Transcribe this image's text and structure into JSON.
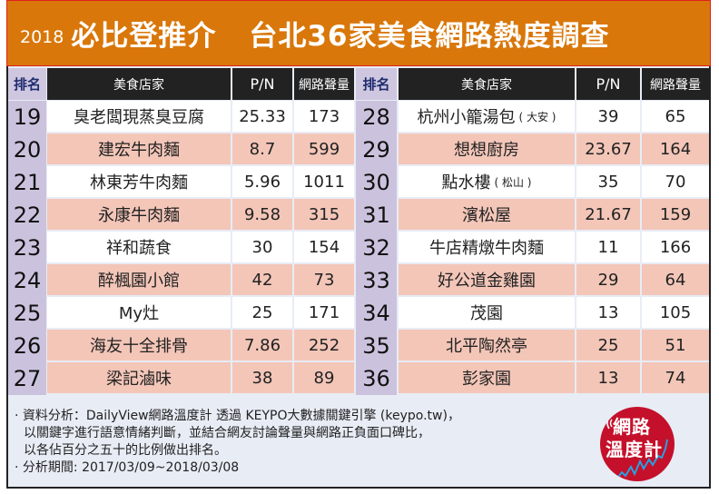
{
  "title": {
    "year": "2018",
    "part1": "必比登推介",
    "part2": "台北36家美食網路熱度調查"
  },
  "headers": {
    "rank": "排名",
    "name": "美食店家",
    "pn": "P/N",
    "volume": "網路聲量"
  },
  "left_rows": [
    {
      "rank": "19",
      "name": "臭老闆現蒸臭豆腐",
      "sub": "",
      "pn": "25.33",
      "volume": "173"
    },
    {
      "rank": "20",
      "name": "建宏牛肉麵",
      "sub": "",
      "pn": "8.7",
      "volume": "599"
    },
    {
      "rank": "21",
      "name": "林東芳牛肉麵",
      "sub": "",
      "pn": "5.96",
      "volume": "1011"
    },
    {
      "rank": "22",
      "name": "永康牛肉麵",
      "sub": "",
      "pn": "9.58",
      "volume": "315"
    },
    {
      "rank": "23",
      "name": "祥和蔬食",
      "sub": "",
      "pn": "30",
      "volume": "154"
    },
    {
      "rank": "24",
      "name": "醉楓園小館",
      "sub": "",
      "pn": "42",
      "volume": "73"
    },
    {
      "rank": "25",
      "name": "My灶",
      "sub": "",
      "pn": "25",
      "volume": "171"
    },
    {
      "rank": "26",
      "name": "海友十全排骨",
      "sub": "",
      "pn": "7.86",
      "volume": "252"
    },
    {
      "rank": "27",
      "name": "梁記滷味",
      "sub": "",
      "pn": "38",
      "volume": "89"
    }
  ],
  "right_rows": [
    {
      "rank": "28",
      "name": "杭州小籠湯包",
      "sub": "( 大安 )",
      "pn": "39",
      "volume": "65"
    },
    {
      "rank": "29",
      "name": "想想廚房",
      "sub": "",
      "pn": "23.67",
      "volume": "164"
    },
    {
      "rank": "30",
      "name": "點水樓",
      "sub": "( 松山 )",
      "pn": "35",
      "volume": "70"
    },
    {
      "rank": "31",
      "name": "濱松屋",
      "sub": "",
      "pn": "21.67",
      "volume": "159"
    },
    {
      "rank": "32",
      "name": "牛店精燉牛肉麵",
      "sub": "",
      "pn": "11",
      "volume": "166"
    },
    {
      "rank": "33",
      "name": "好公道金雞園",
      "sub": "",
      "pn": "29",
      "volume": "64"
    },
    {
      "rank": "34",
      "name": "茂園",
      "sub": "",
      "pn": "13",
      "volume": "105"
    },
    {
      "rank": "35",
      "name": "北平陶然亭",
      "sub": "",
      "pn": "25",
      "volume": "51"
    },
    {
      "rank": "36",
      "name": "彭家園",
      "sub": "",
      "pn": "13",
      "volume": "74"
    }
  ],
  "footer": {
    "line1": "· 資料分析：DailyView網路溫度計 透過 KEYPO大數據關鍵引擎 (keypo.tw)，",
    "line2": "  以關鍵字進行語意情緒判斷，並結合網友討論聲量與網路正負面口碑比，",
    "line3": "  以各佔百分之五十的比例做出排名。",
    "line4": "· 分析期間: 2017/03/09~2018/03/08"
  },
  "logo": {
    "line1": "網路",
    "line2": "溫度計"
  },
  "colors": {
    "title_bg": "#d9770a",
    "header_bg": "#222222",
    "rank_bg": "#cbc3de",
    "row_pink": "#f3c6b8",
    "row_white": "#ffffff",
    "footer_bg": "#e8ecf5",
    "logo_red": "#c5102b"
  }
}
